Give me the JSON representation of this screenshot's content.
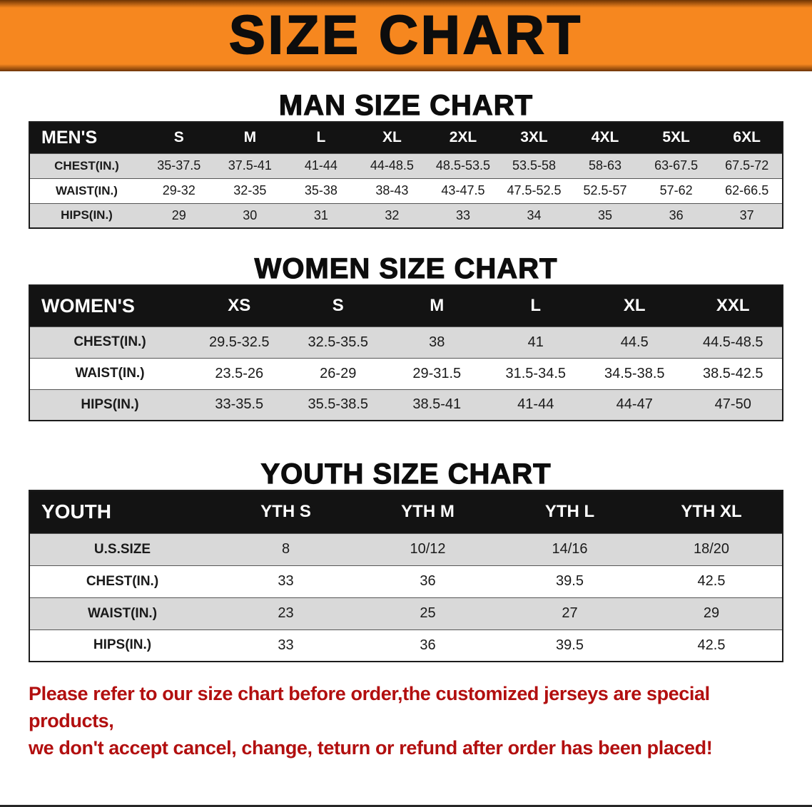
{
  "banner": {
    "title": "SIZE CHART"
  },
  "men": {
    "heading": "MAN SIZE CHART",
    "label": "MEN'S",
    "columns": [
      "S",
      "M",
      "L",
      "XL",
      "2XL",
      "3XL",
      "4XL",
      "5XL",
      "6XL"
    ],
    "rows": [
      {
        "label": "CHEST(IN.)",
        "values": [
          "35-37.5",
          "37.5-41",
          "41-44",
          "44-48.5",
          "48.5-53.5",
          "53.5-58",
          "58-63",
          "63-67.5",
          "67.5-72"
        ]
      },
      {
        "label": "WAIST(IN.)",
        "values": [
          "29-32",
          "32-35",
          "35-38",
          "38-43",
          "43-47.5",
          "47.5-52.5",
          "52.5-57",
          "57-62",
          "62-66.5"
        ]
      },
      {
        "label": "HIPS(IN.)",
        "values": [
          "29",
          "30",
          "31",
          "32",
          "33",
          "34",
          "35",
          "36",
          "37"
        ]
      }
    ]
  },
  "women": {
    "heading": "WOMEN SIZE CHART",
    "label": "WOMEN'S",
    "columns": [
      "XS",
      "S",
      "M",
      "L",
      "XL",
      "XXL"
    ],
    "rows": [
      {
        "label": "CHEST(IN.)",
        "values": [
          "29.5-32.5",
          "32.5-35.5",
          "38",
          "41",
          "44.5",
          "44.5-48.5"
        ]
      },
      {
        "label": "WAIST(IN.)",
        "values": [
          "23.5-26",
          "26-29",
          "29-31.5",
          "31.5-34.5",
          "34.5-38.5",
          "38.5-42.5"
        ]
      },
      {
        "label": "HIPS(IN.)",
        "values": [
          "33-35.5",
          "35.5-38.5",
          "38.5-41",
          "41-44",
          "44-47",
          "47-50"
        ]
      }
    ]
  },
  "youth": {
    "heading": "YOUTH SIZE CHART",
    "label": "YOUTH",
    "columns": [
      "YTH S",
      "YTH M",
      "YTH L",
      "YTH XL"
    ],
    "rows": [
      {
        "label": "U.S.SIZE",
        "values": [
          "8",
          "10/12",
          "14/16",
          "18/20"
        ]
      },
      {
        "label": "CHEST(IN.)",
        "values": [
          "33",
          "36",
          "39.5",
          "42.5"
        ]
      },
      {
        "label": "WAIST(IN.)",
        "values": [
          "23",
          "25",
          "27",
          "29"
        ]
      },
      {
        "label": "HIPS(IN.)",
        "values": [
          "33",
          "36",
          "39.5",
          "42.5"
        ]
      }
    ]
  },
  "disclaimer": {
    "line1": "Please refer to our size chart before order,the customized jerseys are special products,",
    "line2": "we don't accept cancel, change, teturn or refund after order has been placed!"
  },
  "colors": {
    "banner_bg": "#f6871f",
    "header_bg": "#131313",
    "row_gray": "#d9d9d9",
    "disclaimer_red": "#b20f0f"
  }
}
